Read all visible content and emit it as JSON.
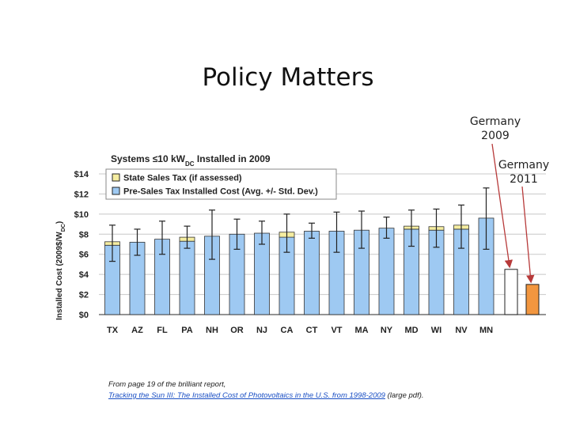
{
  "slide": {
    "title": "Policy Matters"
  },
  "annotations": {
    "germany_2009_line1": "Germany",
    "germany_2009_line2": "2009",
    "germany_2011_line1": "Germany",
    "germany_2011_line2": "2011"
  },
  "source": {
    "prefix": "From page 19 of the brilliant report,",
    "link_text": "Tracking the Sun III: The Installed Cost of Photovoltaics in the U.S. from 1998-2009",
    "suffix": " (large pdf)."
  },
  "chart_data": {
    "type": "bar",
    "title": "Systems ≤10 kW",
    "title_sub": "DC",
    "title_suffix": " Installed in 2009",
    "ylabel": "Installed Cost (2009$/W",
    "ylabel_sub": "DC",
    "ylabel_suffix": ")",
    "ylim": [
      0,
      14
    ],
    "yticks": [
      "$0",
      "$2",
      "$4",
      "$6",
      "$8",
      "$10",
      "$12",
      "$14"
    ],
    "legend": [
      {
        "name": "State Sales Tax (if assessed)",
        "color": "#f5eda0"
      },
      {
        "name": "Pre-Sales Tax Installed Cost (Avg. +/- Std. Dev.)",
        "color": "#9ec9f2"
      }
    ],
    "categories": [
      "TX",
      "AZ",
      "FL",
      "PA",
      "NH",
      "OR",
      "NJ",
      "CA",
      "CT",
      "VT",
      "MA",
      "NY",
      "MD",
      "WI",
      "NV",
      "MN"
    ],
    "series": [
      {
        "name": "Pre-Sales Tax Installed Cost",
        "values": [
          6.9,
          7.2,
          7.5,
          7.3,
          7.8,
          8.0,
          8.1,
          7.7,
          8.3,
          8.3,
          8.4,
          8.6,
          8.5,
          8.4,
          8.5,
          9.6
        ]
      },
      {
        "name": "State Sales Tax",
        "values": [
          0.35,
          0,
          0,
          0.4,
          0,
          0,
          0,
          0.5,
          0,
          0,
          0,
          0,
          0.3,
          0.35,
          0.4,
          0
        ]
      }
    ],
    "error_low": [
      5.3,
      5.9,
      6.0,
      6.6,
      5.5,
      6.5,
      7.0,
      6.2,
      7.6,
      6.2,
      6.6,
      7.6,
      6.8,
      6.7,
      6.6,
      6.5
    ],
    "error_high": [
      8.9,
      8.5,
      9.3,
      8.8,
      10.4,
      9.5,
      9.3,
      10.0,
      9.1,
      10.2,
      10.3,
      9.7,
      10.4,
      10.5,
      10.9,
      12.6
    ],
    "comparison_bars": [
      {
        "name": "Germany 2009",
        "value": 4.5,
        "color": "#ffffff"
      },
      {
        "name": "Germany 2011",
        "value": 3.0,
        "color": "#f2963f"
      }
    ]
  }
}
